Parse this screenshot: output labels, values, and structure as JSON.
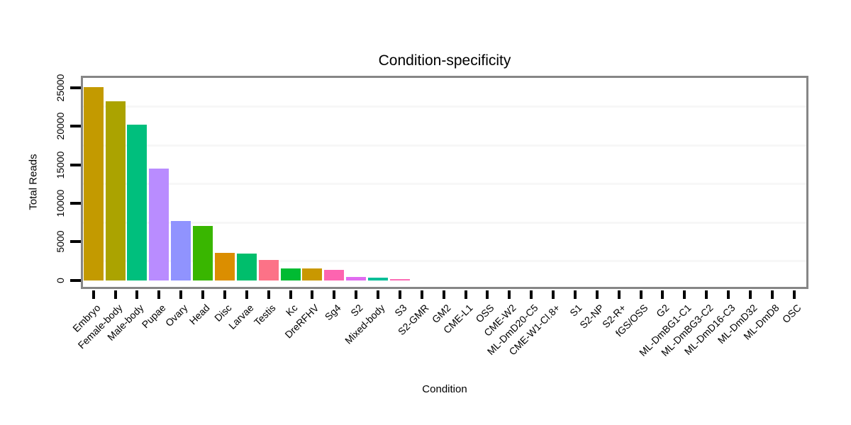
{
  "chart_data": {
    "type": "bar",
    "title": "Condition-specificity",
    "xlabel": "Condition",
    "ylabel": "Total Reads",
    "ylim": [
      0,
      26500
    ],
    "yticks": [
      0,
      5000,
      10000,
      15000,
      20000,
      25000
    ],
    "minor_gridlines": [
      2500,
      7500,
      12500,
      17500,
      22500
    ],
    "grid": "minor-horizontal-only",
    "legend": "none",
    "frame_color": "#868686",
    "tick_color": "#000000",
    "minor_grid_color": "#F7F7F7",
    "categories": [
      "Embryo",
      "Female-body",
      "Male-body",
      "Pupae",
      "Ovary",
      "Head",
      "Disc",
      "Larvae",
      "Testis",
      "Kc",
      "DreRFHV",
      "Sg4",
      "S2",
      "Mixed-body",
      "S3",
      "S2-GMR",
      "GM2",
      "CME-L1",
      "OSS",
      "CME-W2",
      "ML-DmD20-C5",
      "CME-W1-Cl.8+",
      "S1",
      "S2-NP",
      "S2-R+",
      "fGS/OSS",
      "G2",
      "ML-DmBG1-C1",
      "ML-DmBG3-C2",
      "ML-DmD16-C3",
      "ML-DmD32",
      "ML-DmD8",
      "OSC"
    ],
    "values": [
      25100,
      23200,
      20200,
      14500,
      7700,
      7100,
      3600,
      3500,
      2600,
      1560,
      1540,
      1370,
      430,
      330,
      150,
      0,
      0,
      0,
      0,
      0,
      0,
      0,
      0,
      0,
      0,
      0,
      0,
      0,
      0,
      0,
      0,
      0,
      0
    ],
    "bar_colors": [
      "#C39A00",
      "#ABA300",
      "#00BF7D",
      "#B98CFF",
      "#9093FE",
      "#39B600",
      "#DB8E00",
      "#00BE6C",
      "#FC7287",
      "#00BB32",
      "#C99800",
      "#FD64B0",
      "#E06CF0",
      "#00BE98",
      "#FC6EB6",
      null,
      null,
      null,
      null,
      null,
      null,
      null,
      null,
      null,
      null,
      null,
      null,
      null,
      null,
      null,
      null,
      null,
      null
    ]
  }
}
